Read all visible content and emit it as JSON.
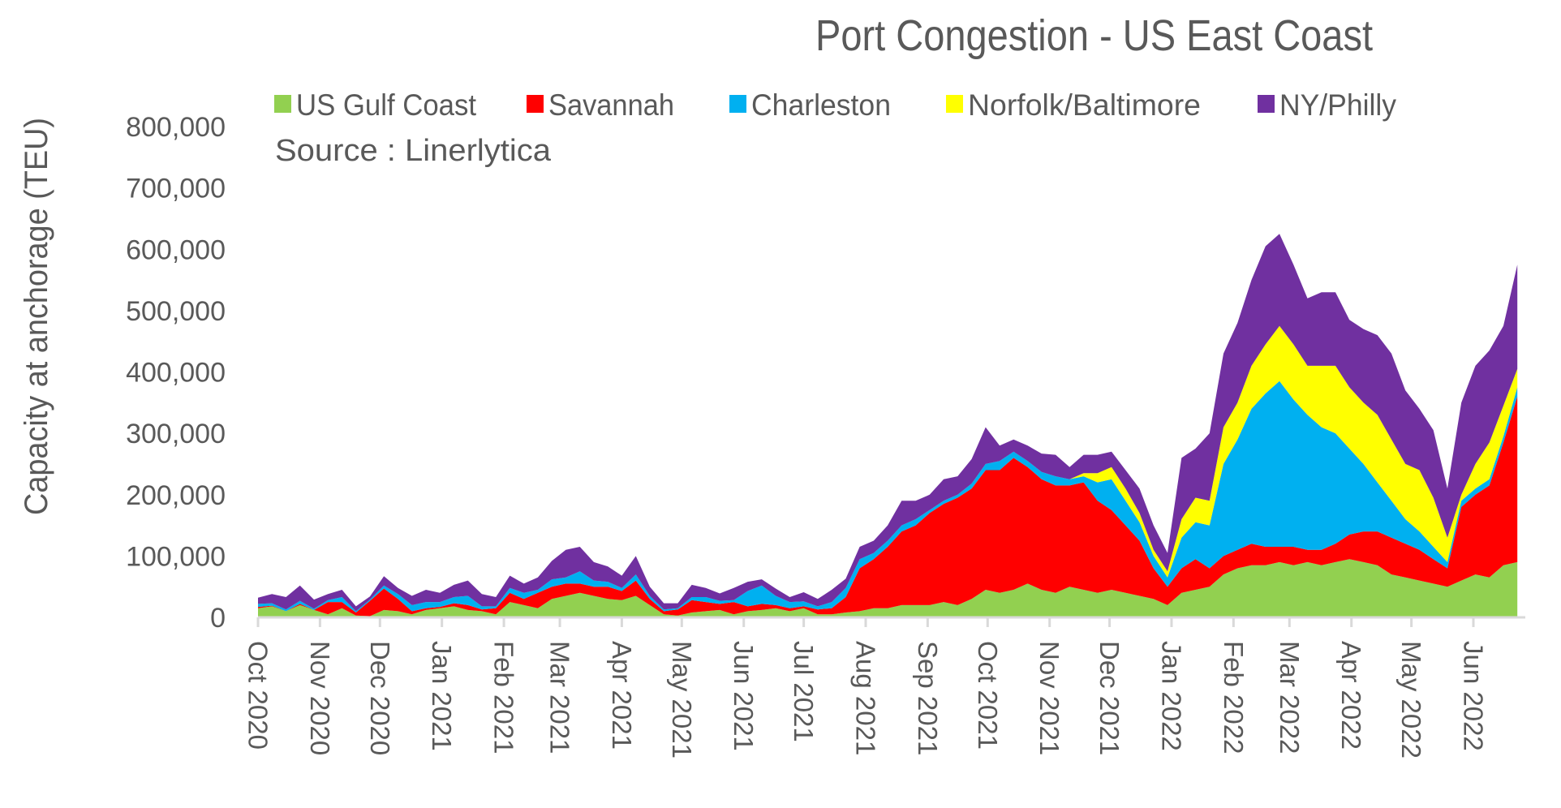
{
  "chart_data": {
    "type": "area",
    "stacked": true,
    "title": "Port Congestion - US East Coast",
    "source_note": "Source : Linerlytica",
    "ylabel": "Capacity at anchorage (TEU)",
    "xlabel": "",
    "ylim": [
      0,
      800000
    ],
    "yticks": [
      "0",
      "100,000",
      "200,000",
      "300,000",
      "400,000",
      "500,000",
      "600,000",
      "700,000",
      "800,000"
    ],
    "xtick_labels": [
      "Oct 2020",
      "Nov 2020",
      "Dec 2020",
      "Jan 2021",
      "Feb 2021",
      "Mar 2021",
      "Apr 2021",
      "May 2021",
      "Jun 2021",
      "Jul 2021",
      "Aug 2021",
      "Sep 2021",
      "Oct 2021",
      "Nov 2021",
      "Dec 2021",
      "Jan 2022",
      "Feb 2022",
      "Mar 2022",
      "Apr 2022",
      "May 2022",
      "Jun 2022"
    ],
    "xtick_dates": [
      "2020-10-01",
      "2020-11-01",
      "2020-12-01",
      "2021-01-01",
      "2021-02-01",
      "2021-03-01",
      "2021-04-01",
      "2021-05-01",
      "2021-06-01",
      "2021-07-01",
      "2021-08-01",
      "2021-09-01",
      "2021-10-01",
      "2021-11-01",
      "2021-12-01",
      "2022-01-01",
      "2022-02-01",
      "2022-03-01",
      "2022-04-01",
      "2022-05-01",
      "2022-06-01"
    ],
    "grid": false,
    "legend_position": "top",
    "x": [
      "2020-10-01",
      "2020-10-08",
      "2020-10-15",
      "2020-10-22",
      "2020-10-29",
      "2020-11-05",
      "2020-11-12",
      "2020-11-19",
      "2020-11-26",
      "2020-12-03",
      "2020-12-10",
      "2020-12-17",
      "2020-12-24",
      "2020-12-31",
      "2021-01-07",
      "2021-01-14",
      "2021-01-21",
      "2021-01-28",
      "2021-02-04",
      "2021-02-11",
      "2021-02-18",
      "2021-02-25",
      "2021-03-04",
      "2021-03-11",
      "2021-03-18",
      "2021-03-25",
      "2021-04-01",
      "2021-04-08",
      "2021-04-15",
      "2021-04-22",
      "2021-04-29",
      "2021-05-06",
      "2021-05-13",
      "2021-05-20",
      "2021-05-27",
      "2021-06-03",
      "2021-06-10",
      "2021-06-17",
      "2021-06-24",
      "2021-07-01",
      "2021-07-08",
      "2021-07-15",
      "2021-07-22",
      "2021-07-29",
      "2021-08-05",
      "2021-08-12",
      "2021-08-19",
      "2021-08-26",
      "2021-09-02",
      "2021-09-09",
      "2021-09-16",
      "2021-09-23",
      "2021-09-30",
      "2021-10-07",
      "2021-10-14",
      "2021-10-21",
      "2021-10-28",
      "2021-11-04",
      "2021-11-11",
      "2021-11-18",
      "2021-11-25",
      "2021-12-02",
      "2021-12-09",
      "2021-12-16",
      "2021-12-23",
      "2021-12-30",
      "2022-01-06",
      "2022-01-13",
      "2022-01-20",
      "2022-01-27",
      "2022-02-03",
      "2022-02-10",
      "2022-02-17",
      "2022-02-24",
      "2022-03-03",
      "2022-03-10",
      "2022-03-17",
      "2022-03-24",
      "2022-03-31",
      "2022-04-07",
      "2022-04-14",
      "2022-04-21",
      "2022-04-28",
      "2022-05-05",
      "2022-05-12",
      "2022-05-19",
      "2022-05-26",
      "2022-06-02",
      "2022-06-09",
      "2022-06-16",
      "2022-06-23"
    ],
    "series": [
      {
        "name": "US Gulf Coast",
        "color": "#92D050",
        "values": [
          15000,
          18000,
          10000,
          20000,
          12000,
          5000,
          15000,
          3000,
          2000,
          12000,
          10000,
          5000,
          12000,
          15000,
          18000,
          12000,
          10000,
          5000,
          25000,
          20000,
          15000,
          30000,
          35000,
          40000,
          35000,
          30000,
          28000,
          35000,
          20000,
          5000,
          3000,
          8000,
          10000,
          12000,
          5000,
          10000,
          12000,
          15000,
          10000,
          15000,
          5000,
          5000,
          8000,
          10000,
          15000,
          15000,
          20000,
          20000,
          20000,
          25000,
          20000,
          30000,
          45000,
          40000,
          45000,
          55000,
          45000,
          40000,
          50000,
          45000,
          40000,
          45000,
          40000,
          35000,
          30000,
          20000,
          40000,
          45000,
          50000,
          70000,
          80000,
          85000,
          85000,
          90000,
          85000,
          90000,
          85000,
          90000,
          95000,
          90000,
          85000,
          70000,
          65000,
          60000,
          55000,
          50000,
          60000,
          70000,
          65000,
          85000,
          90000
        ]
      },
      {
        "name": "Savannah",
        "color": "#FF0000",
        "values": [
          2000,
          1000,
          0,
          2000,
          0,
          20000,
          10000,
          5000,
          25000,
          35000,
          20000,
          5000,
          3000,
          2000,
          5000,
          8000,
          3000,
          10000,
          15000,
          10000,
          25000,
          20000,
          20000,
          15000,
          15000,
          20000,
          15000,
          25000,
          10000,
          5000,
          10000,
          20000,
          15000,
          10000,
          20000,
          8000,
          10000,
          5000,
          5000,
          3000,
          8000,
          10000,
          25000,
          70000,
          80000,
          100000,
          120000,
          130000,
          150000,
          160000,
          175000,
          180000,
          195000,
          200000,
          215000,
          190000,
          180000,
          175000,
          165000,
          175000,
          150000,
          130000,
          110000,
          90000,
          50000,
          30000,
          40000,
          50000,
          30000,
          30000,
          30000,
          35000,
          30000,
          25000,
          30000,
          20000,
          25000,
          30000,
          40000,
          50000,
          55000,
          60000,
          55000,
          50000,
          40000,
          30000,
          120000,
          130000,
          150000,
          200000,
          270000
        ]
      },
      {
        "name": "Charleston",
        "color": "#00B0F0",
        "values": [
          5000,
          4000,
          3000,
          5000,
          2000,
          3000,
          8000,
          2000,
          2000,
          5000,
          8000,
          10000,
          10000,
          8000,
          10000,
          15000,
          5000,
          3000,
          8000,
          10000,
          5000,
          12000,
          10000,
          20000,
          10000,
          8000,
          5000,
          10000,
          5000,
          3000,
          2000,
          5000,
          8000,
          5000,
          3000,
          25000,
          30000,
          15000,
          10000,
          8000,
          5000,
          10000,
          15000,
          15000,
          10000,
          10000,
          10000,
          10000,
          5000,
          5000,
          5000,
          8000,
          10000,
          15000,
          10000,
          10000,
          12000,
          15000,
          10000,
          10000,
          30000,
          50000,
          40000,
          30000,
          20000,
          15000,
          50000,
          60000,
          70000,
          150000,
          180000,
          220000,
          250000,
          270000,
          240000,
          220000,
          200000,
          180000,
          140000,
          110000,
          80000,
          60000,
          40000,
          30000,
          20000,
          10000,
          10000,
          10000,
          10000,
          10000,
          15000
        ]
      },
      {
        "name": "Norfolk/Baltimore",
        "color": "#FFFF00",
        "values": [
          0,
          0,
          0,
          0,
          0,
          0,
          0,
          0,
          0,
          0,
          0,
          0,
          0,
          0,
          0,
          0,
          0,
          0,
          0,
          0,
          0,
          0,
          0,
          0,
          0,
          0,
          0,
          0,
          0,
          0,
          0,
          0,
          0,
          0,
          0,
          0,
          0,
          0,
          0,
          0,
          0,
          0,
          0,
          0,
          0,
          0,
          0,
          0,
          0,
          0,
          0,
          0,
          0,
          0,
          0,
          0,
          0,
          0,
          0,
          5000,
          15000,
          20000,
          20000,
          15000,
          10000,
          10000,
          30000,
          40000,
          40000,
          60000,
          60000,
          70000,
          80000,
          90000,
          90000,
          80000,
          100000,
          110000,
          100000,
          100000,
          110000,
          100000,
          90000,
          100000,
          80000,
          40000,
          10000,
          40000,
          60000,
          50000,
          30000
        ]
      },
      {
        "name": "NY/Philly",
        "color": "#7030A0",
        "values": [
          10000,
          15000,
          20000,
          25000,
          15000,
          10000,
          12000,
          8000,
          5000,
          15000,
          10000,
          15000,
          20000,
          15000,
          20000,
          25000,
          20000,
          15000,
          20000,
          15000,
          20000,
          30000,
          45000,
          40000,
          30000,
          25000,
          20000,
          30000,
          15000,
          10000,
          8000,
          20000,
          15000,
          12000,
          20000,
          15000,
          10000,
          12000,
          8000,
          15000,
          12000,
          20000,
          15000,
          20000,
          20000,
          25000,
          40000,
          30000,
          25000,
          35000,
          30000,
          40000,
          60000,
          25000,
          20000,
          25000,
          30000,
          35000,
          20000,
          30000,
          30000,
          25000,
          30000,
          40000,
          40000,
          30000,
          100000,
          80000,
          110000,
          120000,
          130000,
          140000,
          160000,
          150000,
          130000,
          110000,
          120000,
          120000,
          110000,
          120000,
          130000,
          140000,
          120000,
          100000,
          110000,
          80000,
          150000,
          160000,
          150000,
          130000,
          170000
        ]
      }
    ]
  }
}
